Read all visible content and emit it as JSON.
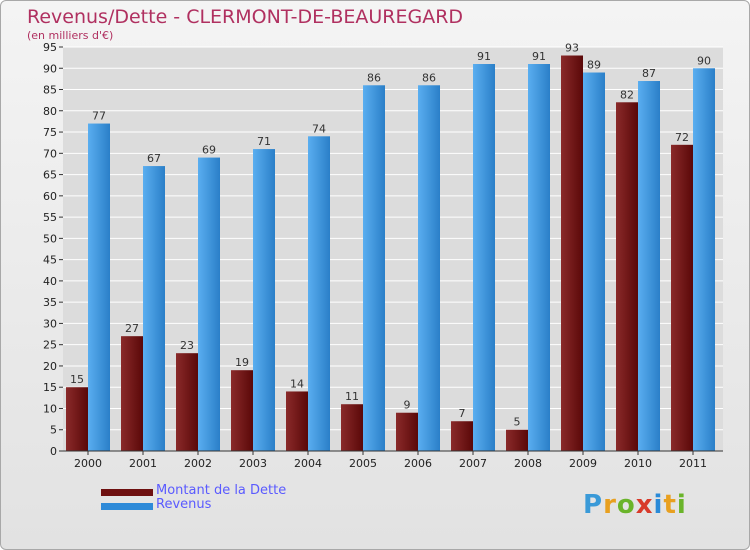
{
  "header": {
    "title": "Revenus/Dette - CLERMONT-DE-BEAUREGARD",
    "subtitle": "(en milliers d'€)"
  },
  "colors": {
    "title": "#b03060",
    "dette": "#6e1010",
    "revenus": "#2e8ad8",
    "legend_text": "#5a5aff",
    "grid": "#ffffff",
    "axis_text": "#222222"
  },
  "legend": {
    "items": [
      {
        "label": "Montant de la Dette",
        "color": "#6e1010"
      },
      {
        "label": "Revenus",
        "color": "#2e8ad8"
      }
    ]
  },
  "logo": {
    "text": "Proxiti"
  },
  "chart_data": {
    "type": "bar",
    "categories": [
      "2000",
      "2001",
      "2002",
      "2003",
      "2004",
      "2005",
      "2006",
      "2007",
      "2008",
      "2009",
      "2010",
      "2011"
    ],
    "series": [
      {
        "name": "Montant de la Dette",
        "values": [
          15,
          27,
          23,
          19,
          14,
          11,
          9,
          7,
          5,
          93,
          82,
          72
        ]
      },
      {
        "name": "Revenus",
        "values": [
          77,
          67,
          69,
          71,
          74,
          86,
          86,
          91,
          91,
          89,
          87,
          90
        ]
      }
    ],
    "title": "Revenus/Dette - CLERMONT-DE-BEAUREGARD",
    "subtitle": "(en milliers d'€)",
    "xlabel": "",
    "ylabel": "",
    "ylim": [
      0,
      95
    ],
    "ytick_step": 5,
    "grid": true,
    "legend_position": "bottom-left"
  }
}
